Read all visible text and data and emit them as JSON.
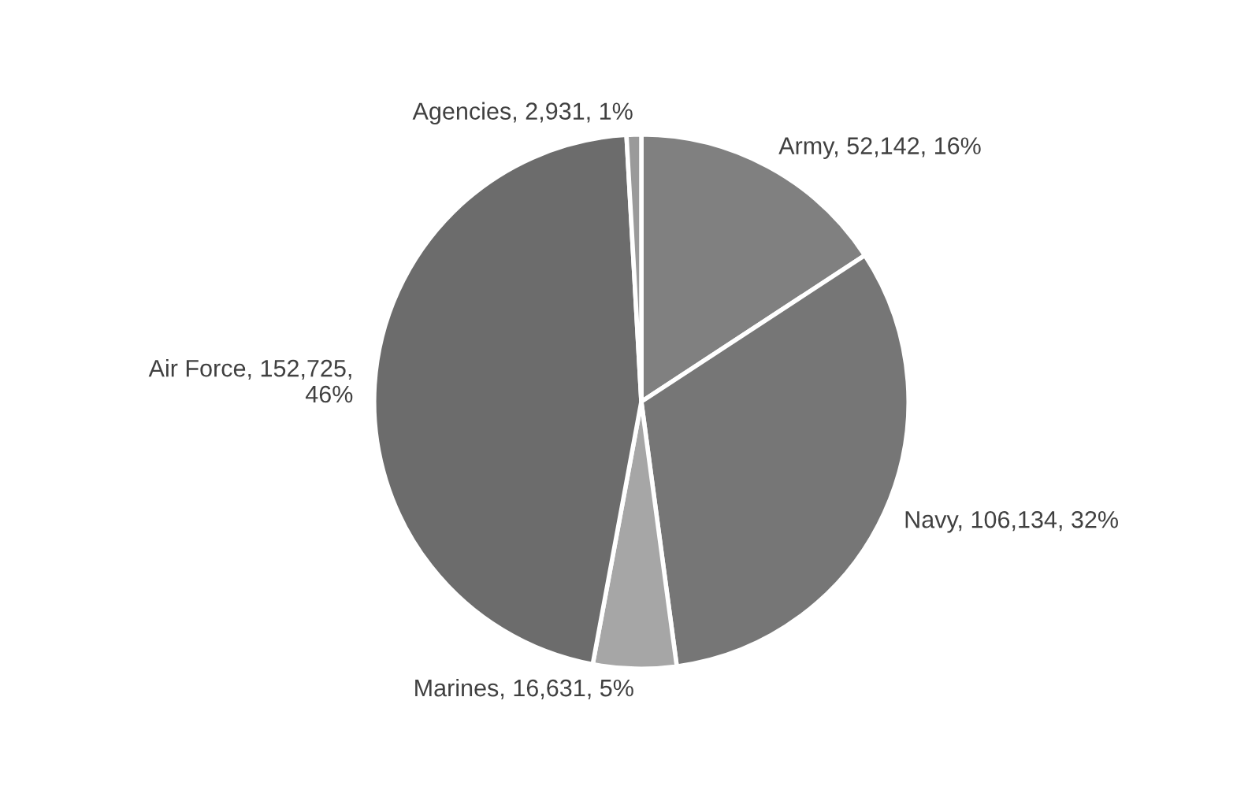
{
  "chart_data": {
    "type": "pie",
    "categories": [
      "Army",
      "Navy",
      "Marines",
      "Air Force",
      "Agencies"
    ],
    "values": [
      52142,
      106134,
      16631,
      152725,
      2931
    ],
    "value_labels": [
      "52,142, 16%",
      "106,134, 32%",
      "16,631, 5%",
      "152,725,\n46%",
      "2,931, 1%"
    ],
    "colors": [
      "#808080",
      "#767676",
      "#a6a6a6",
      "#6c6c6c",
      "#9a9a9a"
    ],
    "legend": false
  }
}
